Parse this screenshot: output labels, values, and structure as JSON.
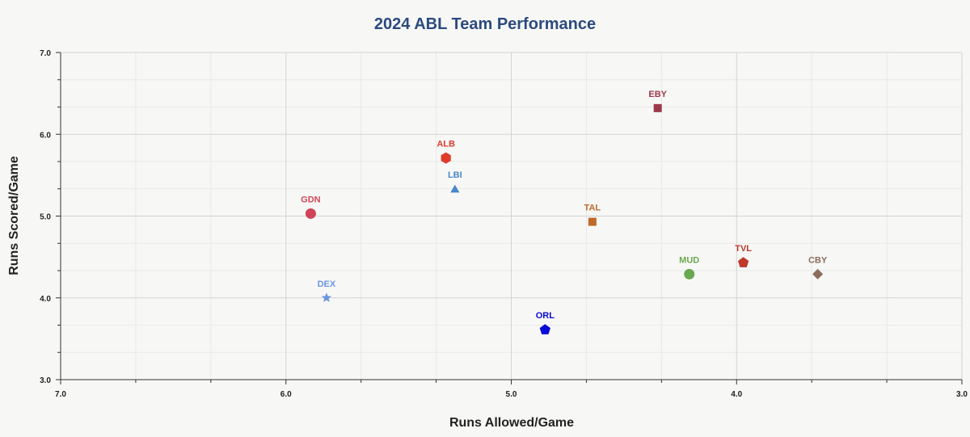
{
  "chart_data": {
    "type": "scatter",
    "title": "2024 ABL Team Performance",
    "xlabel": "Runs Allowed/Game",
    "ylabel": "Runs Scored/Game",
    "xlim": [
      7.0,
      3.0
    ],
    "ylim": [
      3.0,
      7.0
    ],
    "x_reversed": true,
    "x_ticks": [
      "7.0",
      "6.0",
      "5.0",
      "4.0",
      "3.0"
    ],
    "y_ticks": [
      "3.0",
      "4.0",
      "5.0",
      "6.0",
      "7.0"
    ],
    "grid": true,
    "legend": "none",
    "points": [
      {
        "label": "EBY",
        "x": 4.35,
        "y": 6.32,
        "marker": "square",
        "color": "#9b3a4a"
      },
      {
        "label": "ALB",
        "x": 5.29,
        "y": 5.71,
        "marker": "hexagon",
        "color": "#e03a2c"
      },
      {
        "label": "LBI",
        "x": 5.25,
        "y": 5.33,
        "marker": "triangle",
        "color": "#4a86c8"
      },
      {
        "label": "GDN",
        "x": 5.89,
        "y": 5.03,
        "marker": "circle",
        "color": "#d04456"
      },
      {
        "label": "TAL",
        "x": 4.64,
        "y": 4.93,
        "marker": "square",
        "color": "#c0692a"
      },
      {
        "label": "TVL",
        "x": 3.97,
        "y": 4.43,
        "marker": "pentagon",
        "color": "#c0392b"
      },
      {
        "label": "MUD",
        "x": 4.21,
        "y": 4.29,
        "marker": "circle",
        "color": "#6aa84f"
      },
      {
        "label": "CBY",
        "x": 3.64,
        "y": 4.29,
        "marker": "diamond",
        "color": "#8b6b5c"
      },
      {
        "label": "DEX",
        "x": 5.82,
        "y": 4.0,
        "marker": "star",
        "color": "#6c95e0"
      },
      {
        "label": "ORL",
        "x": 4.85,
        "y": 3.61,
        "marker": "pentagon",
        "color": "#0a0ad8"
      }
    ]
  }
}
